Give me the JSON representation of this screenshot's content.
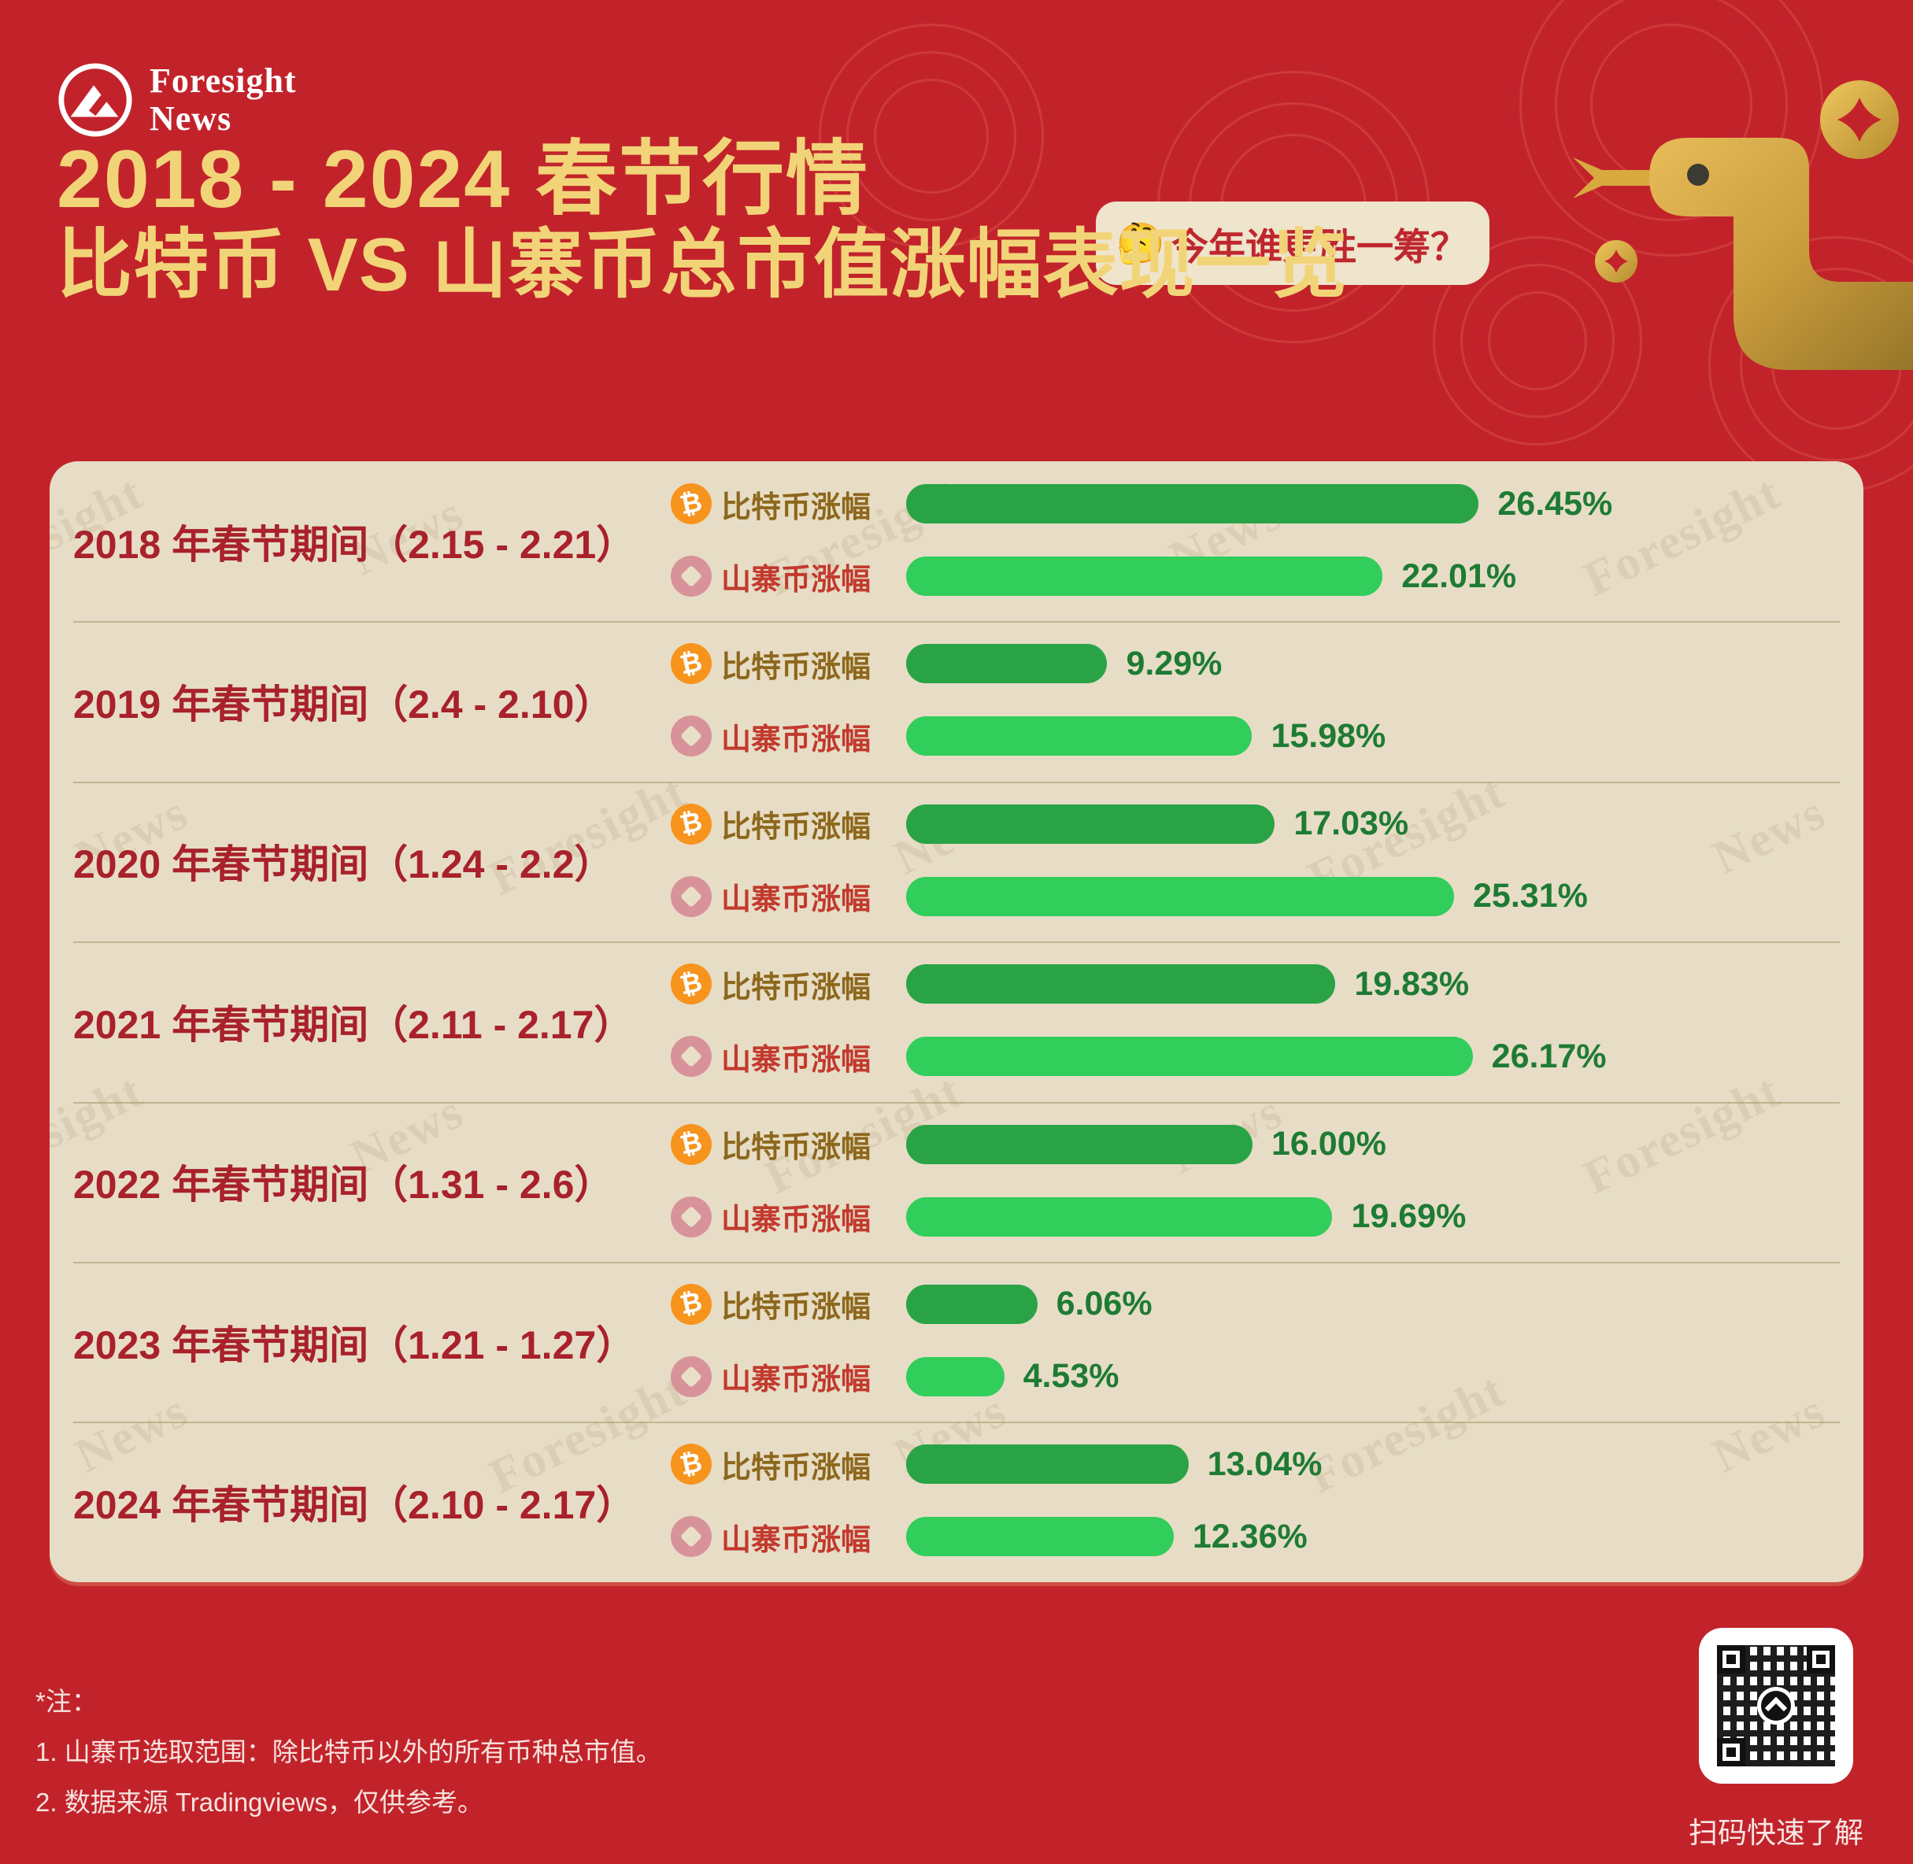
{
  "brand": {
    "line1": "Foresight",
    "line2": "News"
  },
  "header": {
    "title": "2018 - 2024 春节行情",
    "badge_emoji": "🤔",
    "badge_text": "今年谁更胜一筹？",
    "subtitle": "比特币 VS 山寨币总市值涨幅表现一览"
  },
  "legend": {
    "btc": "比特币涨幅",
    "alt": "山寨币涨幅"
  },
  "icons": {
    "bitcoin_glyph": "₿",
    "bitcoin_icon_color": "#F7941D",
    "altcoin_icon_color": "#D8939A",
    "snake": "gold-snake-decoration",
    "coin": "gold-coin-decoration"
  },
  "rows": [
    {
      "period": "2018 年春节期间（2.15 - 2.21）",
      "btc": "26.45%",
      "alt": "22.01%"
    },
    {
      "period": "2019 年春节期间（2.4 - 2.10）",
      "btc": "9.29%",
      "alt": "15.98%"
    },
    {
      "period": "2020 年春节期间（1.24 - 2.2）",
      "btc": "17.03%",
      "alt": "25.31%"
    },
    {
      "period": "2021 年春节期间（2.11 - 2.17）",
      "btc": "19.83%",
      "alt": "26.17%"
    },
    {
      "period": "2022 年春节期间（1.31 - 2.6）",
      "btc": "16.00%",
      "alt": "19.69%"
    },
    {
      "period": "2023 年春节期间（1.21 - 1.27）",
      "btc": "6.06%",
      "alt": "4.53%"
    },
    {
      "period": "2024 年春节期间（2.10 - 2.17）",
      "btc": "13.04%",
      "alt": "12.36%"
    }
  ],
  "chart_data": {
    "type": "bar",
    "orientation": "horizontal",
    "title": "2018 - 2024 春节行情 比特币 VS 山寨币总市值涨幅表现一览",
    "categories": [
      "2018 年春节期间（2.15 - 2.21）",
      "2019 年春节期间（2.4 - 2.10）",
      "2020 年春节期间（1.24 - 2.2）",
      "2021 年春节期间（2.11 - 2.17）",
      "2022 年春节期间（1.31 - 2.6）",
      "2023 年春节期间（1.21 - 1.27）",
      "2024 年春节期间（2.10 - 2.17）"
    ],
    "series": [
      {
        "name": "比特币涨幅",
        "color": "#2AA347",
        "values": [
          26.45,
          9.29,
          17.03,
          19.83,
          16.0,
          6.06,
          13.04
        ]
      },
      {
        "name": "山寨币涨幅",
        "color": "#31CE5B",
        "values": [
          22.01,
          15.98,
          25.31,
          26.17,
          19.69,
          4.53,
          12.36
        ]
      }
    ],
    "unit": "%",
    "xlim": [
      0,
      27
    ],
    "grid": false,
    "value_labels": true,
    "legend_position": "per-bar-left"
  },
  "footer": {
    "note_title": "*注：",
    "notes": [
      "1. 山寨币选取范围：除比特币以外的所有币种总市值。",
      "2. 数据来源 Tradingviews，仅供参考。"
    ],
    "qr_caption": "扫码快速了解"
  },
  "watermark": {
    "words": [
      "Foresight",
      "News"
    ]
  },
  "colors": {
    "background": "#C2232B",
    "panel": "#E7DDC6",
    "title_gold": "#F2D478",
    "badge_bg": "#EFE4CC",
    "badge_text": "#BF272E",
    "period_red": "#A8212B",
    "btc_label_brown": "#8D671C",
    "alt_label_red": "#C23A2E",
    "btc_bar": "#2AA347",
    "alt_bar": "#31CE5B",
    "value_green": "#1E7B34",
    "snake_gold": "#D9AC4B"
  }
}
